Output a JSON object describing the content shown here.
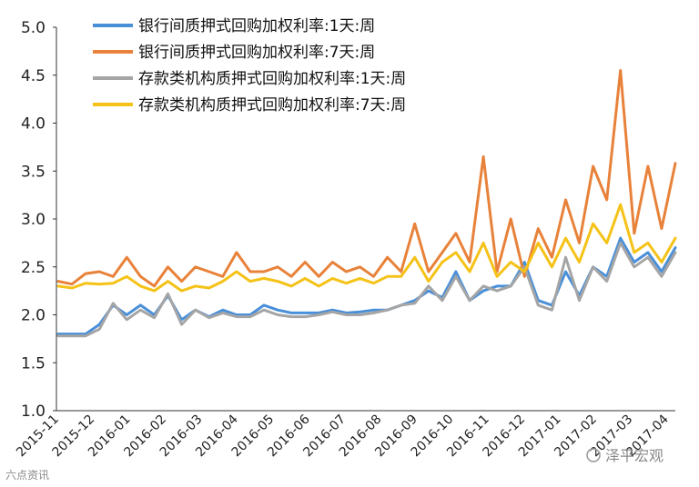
{
  "chart_data": {
    "type": "line",
    "ylim": [
      1.0,
      5.0
    ],
    "yticks": [
      "5.0",
      "4.5",
      "4.0",
      "3.5",
      "3.0",
      "2.5",
      "2.0",
      "1.5",
      "1.0"
    ],
    "x_labels": [
      "2015-11",
      "2015-12",
      "2016-01",
      "2016-02",
      "2016-03",
      "2016-04",
      "2016-05",
      "2016-06",
      "2016-07",
      "2016-08",
      "2016-09",
      "2016-10",
      "2016-11",
      "2016-12",
      "2017-01",
      "2017-02",
      "2017-03",
      "2017-04"
    ],
    "grid": false,
    "legend": "top-left",
    "series": [
      {
        "name": "银行间质押式回购加权利率:1天:周",
        "color": "#4a90d9",
        "values": [
          1.8,
          1.8,
          1.8,
          1.9,
          2.1,
          2.0,
          2.1,
          2.0,
          2.2,
          1.95,
          2.05,
          1.98,
          2.05,
          2.0,
          2.0,
          2.1,
          2.05,
          2.02,
          2.02,
          2.02,
          2.05,
          2.02,
          2.03,
          2.05,
          2.05,
          2.1,
          2.15,
          2.25,
          2.18,
          2.45,
          2.15,
          2.25,
          2.3,
          2.3,
          2.55,
          2.15,
          2.1,
          2.45,
          2.2,
          2.5,
          2.4,
          2.8,
          2.55,
          2.65,
          2.45,
          2.7
        ]
      },
      {
        "name": "银行间质押式回购加权利率:7天:周",
        "color": "#e8823a",
        "values": [
          2.35,
          2.32,
          2.43,
          2.45,
          2.4,
          2.6,
          2.4,
          2.3,
          2.5,
          2.35,
          2.5,
          2.45,
          2.4,
          2.65,
          2.45,
          2.45,
          2.5,
          2.4,
          2.55,
          2.4,
          2.55,
          2.45,
          2.5,
          2.4,
          2.6,
          2.45,
          2.95,
          2.45,
          2.65,
          2.85,
          2.55,
          3.65,
          2.45,
          3.0,
          2.4,
          2.9,
          2.6,
          3.2,
          2.75,
          3.55,
          3.2,
          4.55,
          2.85,
          3.55,
          2.9,
          3.58
        ]
      },
      {
        "name": "存款类机构质押式回购加权利率:1天:周",
        "color": "#a5a5a5",
        "values": [
          1.78,
          1.78,
          1.78,
          1.85,
          2.12,
          1.95,
          2.05,
          1.97,
          2.22,
          1.9,
          2.05,
          1.97,
          2.02,
          1.98,
          1.98,
          2.05,
          2.0,
          1.98,
          1.98,
          2.0,
          2.03,
          2.0,
          2.0,
          2.02,
          2.05,
          2.1,
          2.12,
          2.3,
          2.15,
          2.4,
          2.15,
          2.3,
          2.25,
          2.3,
          2.5,
          2.1,
          2.05,
          2.6,
          2.15,
          2.5,
          2.35,
          2.75,
          2.5,
          2.6,
          2.4,
          2.65
        ]
      },
      {
        "name": "存款类机构质押式回购加权利率:7天:周",
        "color": "#f5c218",
        "values": [
          2.3,
          2.28,
          2.33,
          2.32,
          2.33,
          2.4,
          2.3,
          2.25,
          2.35,
          2.25,
          2.3,
          2.28,
          2.35,
          2.45,
          2.35,
          2.38,
          2.35,
          2.3,
          2.38,
          2.3,
          2.38,
          2.33,
          2.38,
          2.33,
          2.4,
          2.4,
          2.6,
          2.35,
          2.55,
          2.65,
          2.45,
          2.75,
          2.4,
          2.55,
          2.45,
          2.75,
          2.5,
          2.8,
          2.55,
          2.95,
          2.75,
          3.15,
          2.65,
          2.75,
          2.55,
          2.8
        ]
      }
    ]
  },
  "watermark": {
    "left_text": "六点资讯",
    "right_text": "泽平宏观"
  }
}
